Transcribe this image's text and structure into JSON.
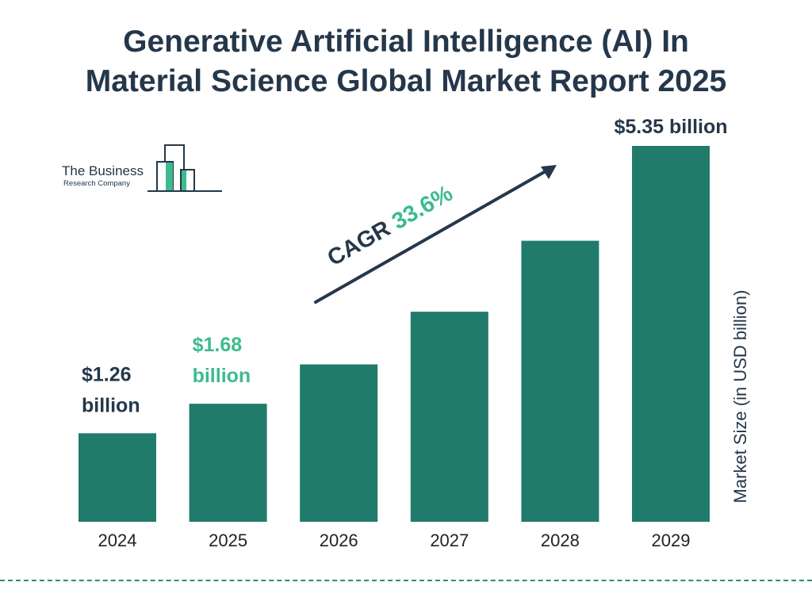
{
  "title_lines": [
    "Generative Artificial Intelligence (AI) In",
    "Material Science Global Market Report 2025"
  ],
  "logo": {
    "line1": "The Business",
    "line2": "Research Company"
  },
  "cagr": {
    "label": "CAGR",
    "value": "33.6%"
  },
  "colors": {
    "bar": "#217b6b",
    "title": "#25374a",
    "highlight": "#3dbb8d",
    "dash": "#2e8b78"
  },
  "chart_data": {
    "type": "bar",
    "categories": [
      "2024",
      "2025",
      "2026",
      "2027",
      "2028",
      "2029"
    ],
    "values": [
      1.26,
      1.68,
      2.24,
      2.99,
      4.0,
      5.35
    ],
    "ylabel": "Market Size (in USD billion)",
    "ylim": [
      0,
      5.35
    ],
    "grid": false,
    "data_labels": [
      {
        "index": 0,
        "lines": [
          "$1.26",
          "billion"
        ],
        "color": "#25374a"
      },
      {
        "index": 1,
        "lines": [
          "$1.68",
          "billion"
        ],
        "color": "#3dbb8d"
      },
      {
        "index": 5,
        "lines": [
          "$5.35 billion"
        ],
        "color": "#25374a"
      }
    ]
  }
}
